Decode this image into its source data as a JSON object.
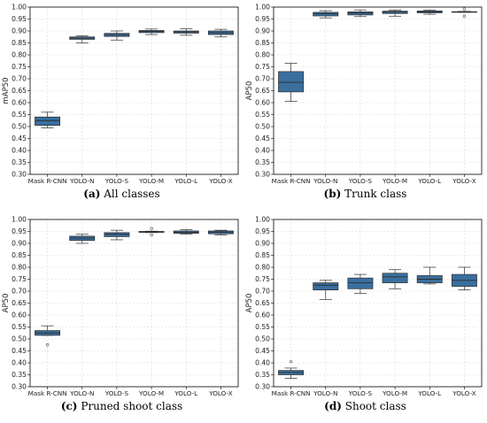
{
  "chart_data": [
    {
      "type": "box",
      "title": "",
      "ylabel": "mAP50",
      "xlabel": "",
      "ylim": [
        0.3,
        1.0
      ],
      "yticks": [
        "0.30",
        "0.35",
        "0.40",
        "0.45",
        "0.50",
        "0.55",
        "0.60",
        "0.65",
        "0.70",
        "0.75",
        "0.80",
        "0.85",
        "0.90",
        "0.95",
        "1.00"
      ],
      "grid": true,
      "caption_letter": "(a)",
      "caption_text": "All classes",
      "categories": [
        "Mask R-CNN",
        "YOLO-N",
        "YOLO-S",
        "YOLO-M",
        "YOLO-L",
        "YOLO-X"
      ],
      "boxes": [
        {
          "min": 0.495,
          "q1": 0.505,
          "median": 0.525,
          "q3": 0.54,
          "max": 0.56,
          "outliers": []
        },
        {
          "min": 0.85,
          "q1": 0.865,
          "median": 0.87,
          "q3": 0.875,
          "max": 0.88,
          "outliers": []
        },
        {
          "min": 0.862,
          "q1": 0.877,
          "median": 0.884,
          "q3": 0.89,
          "max": 0.9,
          "outliers": []
        },
        {
          "min": 0.885,
          "q1": 0.893,
          "median": 0.898,
          "q3": 0.902,
          "max": 0.908,
          "outliers": []
        },
        {
          "min": 0.882,
          "q1": 0.891,
          "median": 0.896,
          "q3": 0.9,
          "max": 0.91,
          "outliers": []
        },
        {
          "min": 0.875,
          "q1": 0.885,
          "median": 0.893,
          "q3": 0.9,
          "max": 0.907,
          "outliers": []
        }
      ]
    },
    {
      "type": "box",
      "title": "",
      "ylabel": "AP50",
      "xlabel": "",
      "ylim": [
        0.3,
        1.0
      ],
      "yticks": [
        "0.30",
        "0.35",
        "0.40",
        "0.45",
        "0.50",
        "0.55",
        "0.60",
        "0.65",
        "0.70",
        "0.75",
        "0.80",
        "0.85",
        "0.90",
        "0.95",
        "1.00"
      ],
      "grid": true,
      "caption_letter": "(b)",
      "caption_text": "Trunk class",
      "categories": [
        "Mask R-CNN",
        "YOLO-N",
        "YOLO-S",
        "YOLO-M",
        "YOLO-L",
        "YOLO-X"
      ],
      "boxes": [
        {
          "min": 0.605,
          "q1": 0.645,
          "median": 0.685,
          "q3": 0.73,
          "max": 0.765,
          "outliers": []
        },
        {
          "min": 0.955,
          "q1": 0.963,
          "median": 0.972,
          "q3": 0.978,
          "max": 0.985,
          "outliers": []
        },
        {
          "min": 0.96,
          "q1": 0.967,
          "median": 0.975,
          "q3": 0.98,
          "max": 0.988,
          "outliers": []
        },
        {
          "min": 0.962,
          "q1": 0.973,
          "median": 0.979,
          "q3": 0.983,
          "max": 0.988,
          "outliers": []
        },
        {
          "min": 0.97,
          "q1": 0.976,
          "median": 0.98,
          "q3": 0.984,
          "max": 0.988,
          "outliers": []
        },
        {
          "min": 0.978,
          "q1": 0.979,
          "median": 0.98,
          "q3": 0.981,
          "max": 0.982,
          "outliers": [
            0.962,
            0.992
          ]
        }
      ]
    },
    {
      "type": "box",
      "title": "",
      "ylabel": "AP50",
      "xlabel": "",
      "ylim": [
        0.3,
        1.0
      ],
      "yticks": [
        "0.30",
        "0.35",
        "0.40",
        "0.45",
        "0.50",
        "0.55",
        "0.60",
        "0.65",
        "0.70",
        "0.75",
        "0.80",
        "0.85",
        "0.90",
        "0.95",
        "1.00"
      ],
      "grid": true,
      "caption_letter": "(c)",
      "caption_text": "Pruned shoot class",
      "categories": [
        "Mask R-CNN",
        "YOLO-N",
        "YOLO-S",
        "YOLO-M",
        "YOLO-L",
        "YOLO-X"
      ],
      "boxes": [
        {
          "min": 0.515,
          "q1": 0.515,
          "median": 0.525,
          "q3": 0.535,
          "max": 0.555,
          "outliers": [
            0.475
          ]
        },
        {
          "min": 0.9,
          "q1": 0.912,
          "median": 0.922,
          "q3": 0.93,
          "max": 0.938,
          "outliers": []
        },
        {
          "min": 0.915,
          "q1": 0.928,
          "median": 0.938,
          "q3": 0.945,
          "max": 0.955,
          "outliers": []
        },
        {
          "min": 0.945,
          "q1": 0.946,
          "median": 0.948,
          "q3": 0.95,
          "max": 0.951,
          "outliers": [
            0.935,
            0.962
          ]
        },
        {
          "min": 0.938,
          "q1": 0.942,
          "median": 0.947,
          "q3": 0.952,
          "max": 0.958,
          "outliers": []
        },
        {
          "min": 0.935,
          "q1": 0.94,
          "median": 0.947,
          "q3": 0.952,
          "max": 0.955,
          "outliers": []
        }
      ]
    },
    {
      "type": "box",
      "title": "",
      "ylabel": "AP50",
      "xlabel": "",
      "ylim": [
        0.3,
        1.0
      ],
      "yticks": [
        "0.30",
        "0.35",
        "0.40",
        "0.45",
        "0.50",
        "0.55",
        "0.60",
        "0.65",
        "0.70",
        "0.75",
        "0.80",
        "0.85",
        "0.90",
        "0.95",
        "1.00"
      ],
      "grid": true,
      "caption_letter": "(d)",
      "caption_text": "Shoot class",
      "categories": [
        "Mask R-CNN",
        "YOLO-N",
        "YOLO-S",
        "YOLO-M",
        "YOLO-L",
        "YOLO-X"
      ],
      "boxes": [
        {
          "min": 0.335,
          "q1": 0.35,
          "median": 0.36,
          "q3": 0.368,
          "max": 0.378,
          "outliers": [
            0.405
          ]
        },
        {
          "min": 0.665,
          "q1": 0.705,
          "median": 0.725,
          "q3": 0.735,
          "max": 0.745,
          "outliers": []
        },
        {
          "min": 0.69,
          "q1": 0.71,
          "median": 0.735,
          "q3": 0.755,
          "max": 0.77,
          "outliers": []
        },
        {
          "min": 0.71,
          "q1": 0.735,
          "median": 0.76,
          "q3": 0.775,
          "max": 0.79,
          "outliers": []
        },
        {
          "min": 0.73,
          "q1": 0.735,
          "median": 0.75,
          "q3": 0.765,
          "max": 0.8,
          "outliers": []
        },
        {
          "min": 0.705,
          "q1": 0.72,
          "median": 0.745,
          "q3": 0.77,
          "max": 0.8,
          "outliers": []
        }
      ]
    }
  ],
  "colors": {
    "box_fill": "#3a6f9e",
    "box_edge": "#2d2d2d",
    "median": "#2d2d2d",
    "grid": "#d9d9d9",
    "axes": "#000000"
  }
}
